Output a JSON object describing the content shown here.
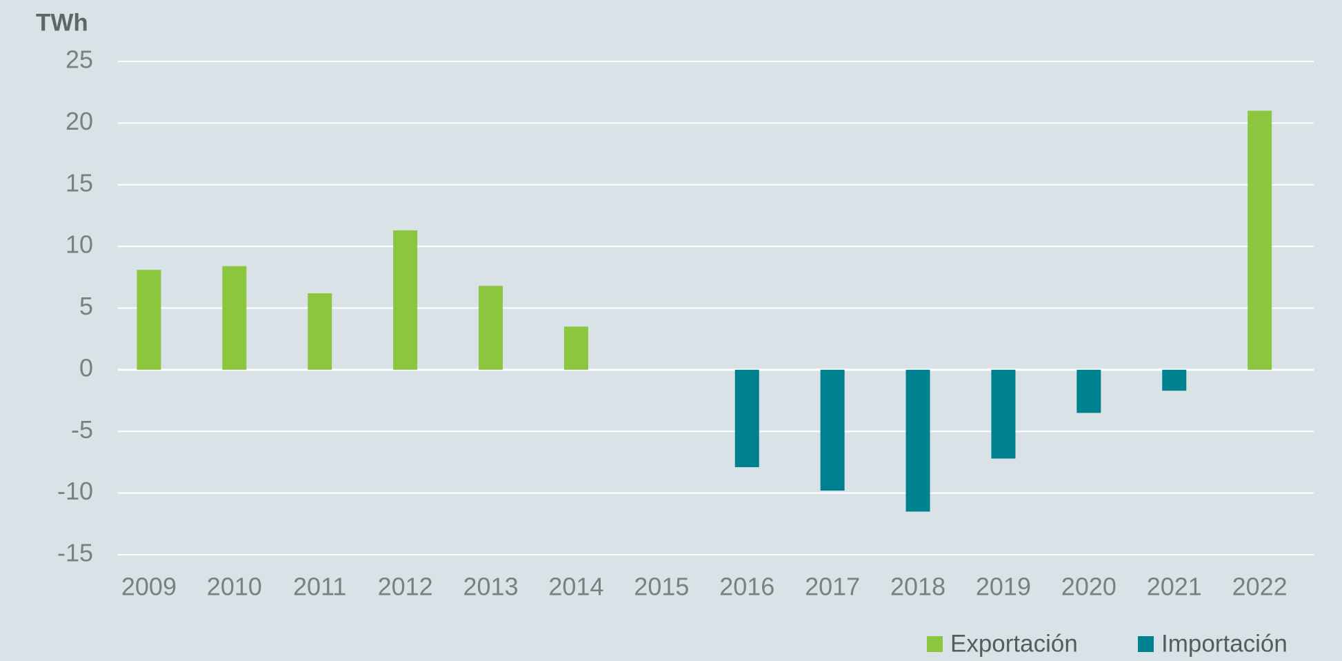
{
  "chart_data": {
    "type": "bar",
    "y_label": "TWh",
    "categories": [
      "2009",
      "2010",
      "2011",
      "2012",
      "2013",
      "2014",
      "2015",
      "2016",
      "2017",
      "2018",
      "2019",
      "2020",
      "2021",
      "2022"
    ],
    "series": [
      {
        "name": "Exportación",
        "color": "#8cc63f",
        "values": [
          8.1,
          8.4,
          6.2,
          11.3,
          6.8,
          3.5,
          null,
          null,
          null,
          null,
          null,
          null,
          null,
          21.0
        ]
      },
      {
        "name": "Importación",
        "color": "#00818f",
        "values": [
          null,
          null,
          null,
          null,
          null,
          null,
          null,
          -7.9,
          -9.8,
          -11.5,
          -7.2,
          -3.5,
          -1.7,
          null
        ]
      }
    ],
    "ylim": [
      -15,
      25
    ],
    "yticks": [
      -15,
      -10,
      -5,
      0,
      5,
      10,
      15,
      20,
      25
    ],
    "grid": true
  }
}
